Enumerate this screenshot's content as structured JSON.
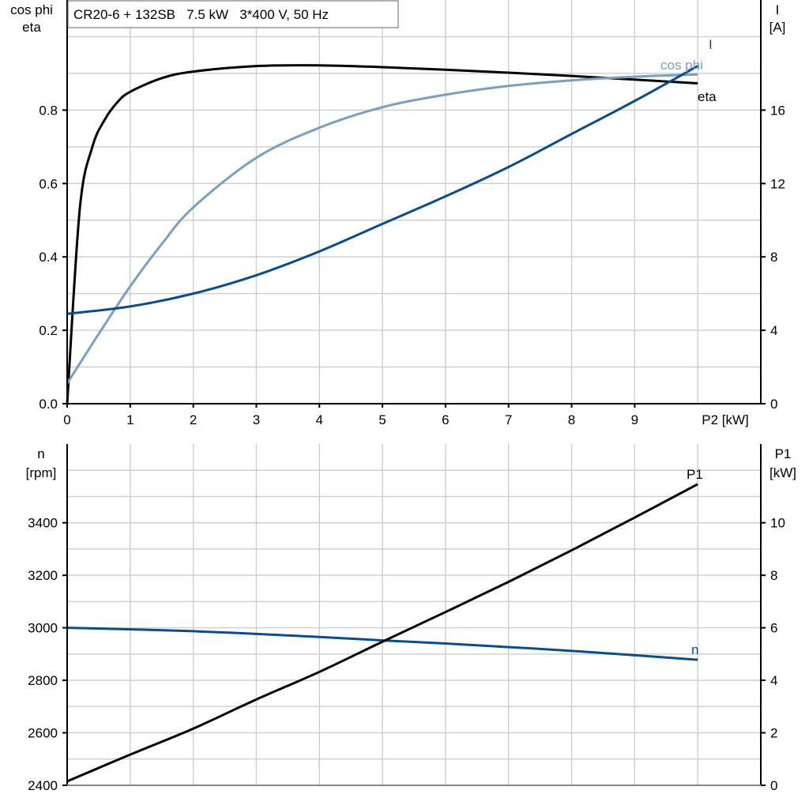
{
  "title": "CR20-6 + 132SB   7.5 kW   3*400 V, 50 Hz",
  "colors": {
    "eta": "#000000",
    "cos_phi": "#7a9fc0",
    "I": "#0b4d86",
    "n": "#0b4d86",
    "P1": "#000000",
    "grid": "#d0d0d0"
  },
  "chart_data": [
    {
      "type": "line",
      "xlabel": "P2 [kW]",
      "xlim": [
        0,
        11
      ],
      "xticks": [
        0,
        1,
        2,
        3,
        4,
        5,
        6,
        7,
        8,
        9
      ],
      "ylabel_left": [
        "cos phi",
        "eta"
      ],
      "ylim_left": [
        0,
        1.1
      ],
      "yticks_left": [
        "0.0",
        "0.2",
        "0.4",
        "0.6",
        "0.8"
      ],
      "ylabel_right": [
        "I",
        "[A]"
      ],
      "ylim_right": [
        0,
        22
      ],
      "yticks_right": [
        "0",
        "4",
        "8",
        "12",
        "16"
      ],
      "grid": true,
      "series": [
        {
          "name": "eta",
          "axis": "left",
          "x": [
            0,
            0.2,
            0.4,
            0.6,
            0.8,
            1,
            1.5,
            2,
            3,
            4,
            5,
            6,
            7,
            8,
            9,
            10
          ],
          "y": [
            0,
            0.53,
            0.7,
            0.775,
            0.822,
            0.85,
            0.887,
            0.905,
            0.92,
            0.922,
            0.917,
            0.91,
            0.902,
            0.893,
            0.883,
            0.873
          ]
        },
        {
          "name": "cos phi",
          "axis": "left",
          "x": [
            0,
            0.5,
            1,
            1.5,
            2,
            3,
            4,
            5,
            6,
            7,
            8,
            9,
            10
          ],
          "y": [
            0.055,
            0.19,
            0.32,
            0.435,
            0.535,
            0.67,
            0.752,
            0.808,
            0.842,
            0.866,
            0.881,
            0.891,
            0.897
          ]
        },
        {
          "name": "I",
          "axis": "right",
          "x": [
            0,
            1,
            2,
            3,
            4,
            5,
            6,
            7,
            8,
            9,
            10
          ],
          "y": [
            4.9,
            5.3,
            6.0,
            7.0,
            8.3,
            9.8,
            11.3,
            12.9,
            14.7,
            16.5,
            18.4
          ]
        }
      ]
    },
    {
      "type": "line",
      "xlim": [
        0,
        11
      ],
      "ylabel_left": [
        "n",
        "[rpm]"
      ],
      "ylim_left": [
        2400,
        3700
      ],
      "yticks_left": [
        "2400",
        "2600",
        "2800",
        "3000",
        "3200",
        "3400"
      ],
      "ylabel_right": [
        "P1",
        "[kW]"
      ],
      "ylim_right": [
        0,
        13
      ],
      "yticks_right": [
        "0",
        "2",
        "4",
        "6",
        "8",
        "10"
      ],
      "grid": true,
      "series": [
        {
          "name": "n",
          "axis": "left",
          "x": [
            0,
            2,
            4,
            5,
            6,
            8,
            10
          ],
          "y": [
            3000,
            2987,
            2965,
            2952,
            2940,
            2912,
            2878
          ]
        },
        {
          "name": "P1",
          "axis": "right",
          "x": [
            0,
            1,
            2,
            3,
            4,
            5,
            6,
            7,
            8,
            9,
            10
          ],
          "y": [
            0.15,
            1.17,
            2.16,
            3.27,
            4.32,
            5.47,
            6.6,
            7.75,
            8.95,
            10.2,
            11.47
          ]
        }
      ]
    }
  ]
}
